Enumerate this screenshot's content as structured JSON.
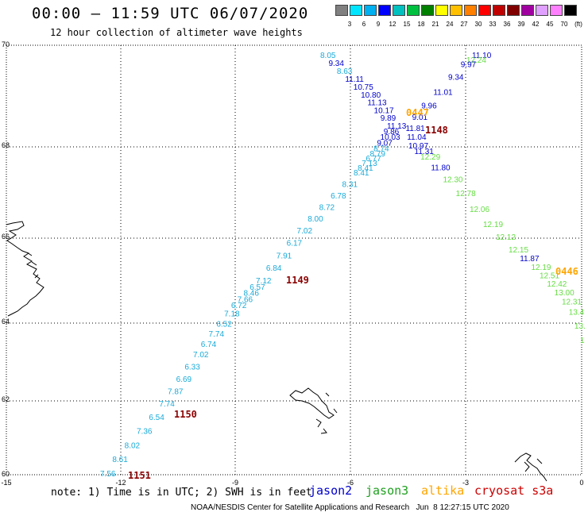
{
  "header": {
    "title": "00:00 – 11:59 UTC 06/07/2020",
    "subtitle": "12 hour collection of altimeter wave heights"
  },
  "legend": {
    "colors": [
      "#808080",
      "#00e5ff",
      "#00b0f0",
      "#0000ff",
      "#00c0c0",
      "#00c040",
      "#008000",
      "#ffff00",
      "#ffc000",
      "#ff8000",
      "#ff0000",
      "#c00000",
      "#800000",
      "#a000a0",
      "#e0a0ff",
      "#ff80ff",
      "#000000"
    ],
    "labels": [
      "3",
      "6",
      "9",
      "12",
      "15",
      "18",
      "21",
      "24",
      "27",
      "30",
      "33",
      "36",
      "39",
      "42",
      "45",
      "70",
      "(ft)"
    ]
  },
  "axes": {
    "lon_ticks": [
      "-15",
      "-12",
      "-9",
      "-6",
      "-3",
      "0"
    ],
    "lat_ticks": [
      "70",
      "68",
      "66",
      "64",
      "62",
      "60"
    ]
  },
  "tracks": {
    "colors": {
      "jason2": "#0000cc",
      "jason3": "#66dd44",
      "altika": "#ffa500",
      "cryosat": "#8b0000",
      "cyan": "#1aaad8"
    },
    "cyan_track": [
      "8.05",
      "9.34",
      "8.63",
      "11.11",
      "10.75",
      "10.80",
      "11.13",
      "10.17",
      "9.89",
      "11.13",
      "9.86",
      "10.03",
      "9.07",
      "8.74",
      "8.79",
      "6.77",
      "7.13",
      "8.41",
      "8.41",
      "8.31",
      "6.78",
      "8.72",
      "8.00",
      "7.02",
      "6.17",
      "7.91",
      "6.84",
      "7.12",
      "6.57",
      "8.46",
      "7.66",
      "6.72",
      "7.18",
      "6.52",
      "7.74",
      "6.74",
      "7.02",
      "6.33",
      "6.69",
      "7.87",
      "7.74",
      "6.54",
      "7.36",
      "8.02",
      "8.61",
      "7.56"
    ],
    "cyan_blue_idx": [
      1,
      3,
      4,
      5,
      6,
      7,
      8,
      9,
      10,
      11,
      12
    ],
    "ne_track": [
      "11.10",
      "12.24",
      "9.97",
      "9.34",
      "11.01",
      "9.96",
      "9.01",
      "11.81",
      "11.04",
      "10.97",
      "11.31",
      "12.29",
      "11.80",
      "12.30",
      "12.78",
      "12.06",
      "12.19",
      "12.12",
      "12.15",
      "11.87",
      "12.19",
      "12.51",
      "12.42",
      "13.00",
      "12.31",
      "13.4",
      "13.",
      "1"
    ],
    "ne_blue_idx": [
      0,
      2,
      3,
      4,
      5,
      6,
      7,
      8,
      9,
      10,
      12,
      19
    ]
  },
  "time_labels": [
    "0447",
    "1148",
    "1149",
    "1150",
    "1151",
    "0446"
  ],
  "footer": {
    "note": "note: 1) Time is in UTC; 2) SWH is in feet",
    "sat_jason2": "jason2",
    "sat_jason3": "jason3",
    "sat_altika": "altika",
    "sat_cryosat": "cryosat s3a",
    "credit": "NOAA/NESDIS Center for Satellite Applications and Research   Jun  8 12:27:15 UTC 2020"
  }
}
